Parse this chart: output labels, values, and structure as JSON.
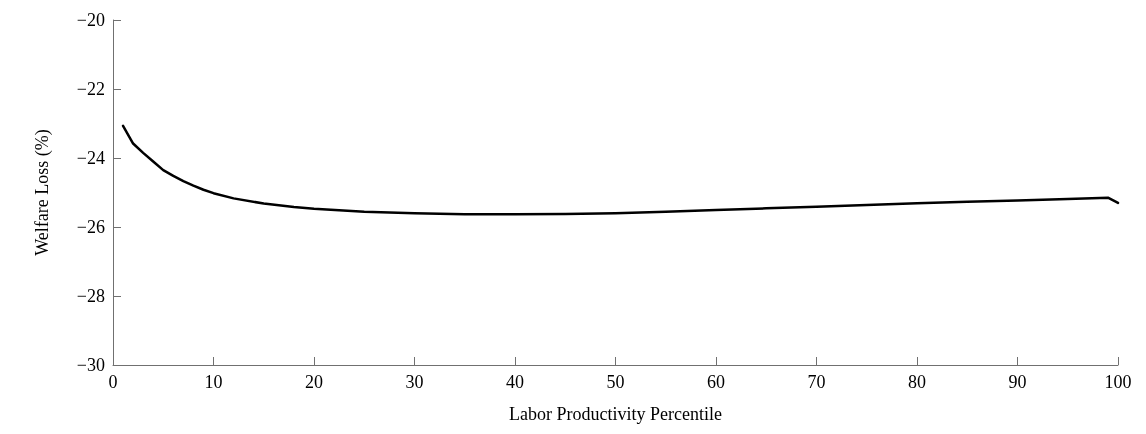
{
  "chart_data": {
    "type": "line",
    "xlabel": "Labor Productivity Percentile",
    "ylabel": "Welfare Loss (%)",
    "x": [
      1,
      2,
      3,
      4,
      5,
      6,
      7,
      8,
      9,
      10,
      12,
      15,
      18,
      20,
      25,
      30,
      35,
      40,
      45,
      50,
      55,
      60,
      65,
      70,
      75,
      80,
      85,
      90,
      95,
      99,
      100
    ],
    "series": [
      {
        "color": "#000000",
        "values": [
          -23.07,
          -23.58,
          -23.85,
          -24.1,
          -24.35,
          -24.52,
          -24.67,
          -24.8,
          -24.92,
          -25.02,
          -25.17,
          -25.32,
          -25.42,
          -25.47,
          -25.56,
          -25.6,
          -25.63,
          -25.63,
          -25.62,
          -25.6,
          -25.56,
          -25.51,
          -25.46,
          -25.41,
          -25.36,
          -25.31,
          -25.27,
          -25.23,
          -25.19,
          -25.15,
          -25.3
        ]
      }
    ],
    "xlim": [
      0,
      100
    ],
    "xticks": [
      0,
      10,
      20,
      30,
      40,
      50,
      60,
      70,
      80,
      90,
      100
    ],
    "ylim": [
      -30,
      -20
    ],
    "yticks": [
      -30,
      -28,
      -26,
      -24,
      -22,
      -20
    ],
    "marker": "none",
    "line_style": "solid"
  }
}
